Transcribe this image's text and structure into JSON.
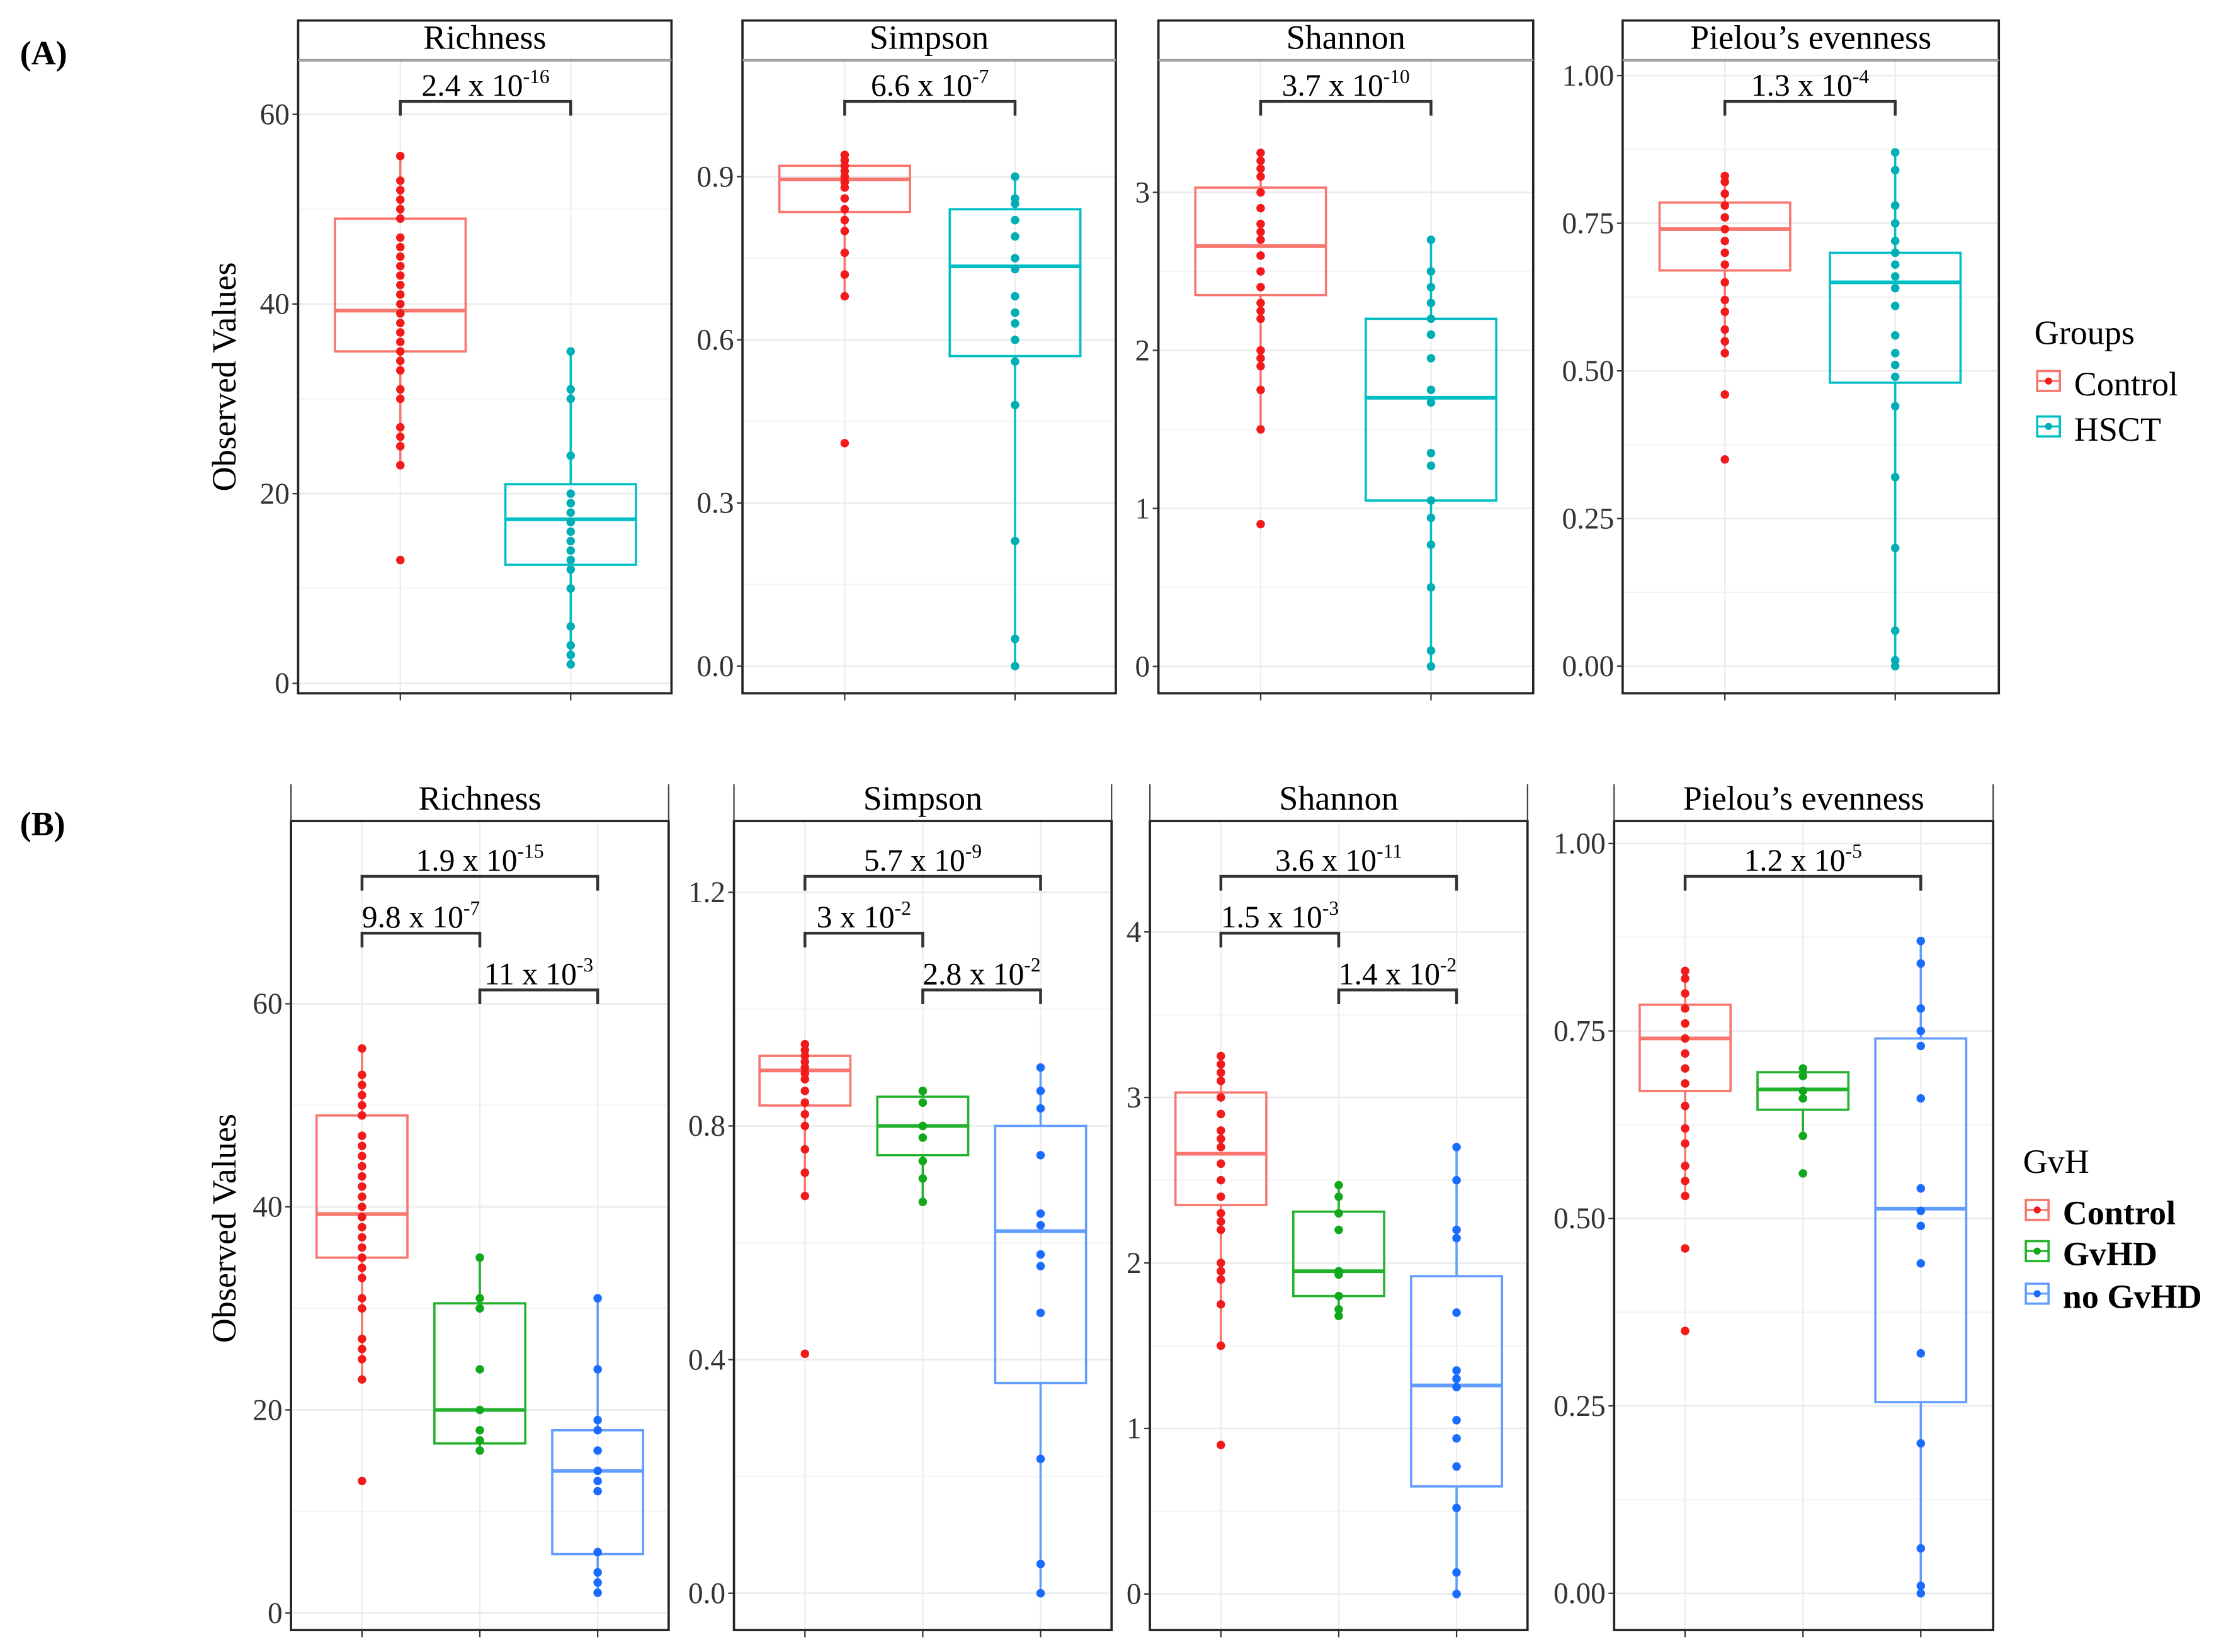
{
  "figure": {
    "panel_a_label": "(A)",
    "panel_b_label": "(B)",
    "ylabel": "Observed Values",
    "legend_a": {
      "title": "Groups",
      "items": [
        {
          "label": "Control",
          "color": "#F8766D",
          "point": "#F21A1A"
        },
        {
          "label": "HSCT",
          "color": "#00BFC4",
          "point": "#00AFB5"
        }
      ]
    },
    "legend_b": {
      "title": "GvH",
      "items": [
        {
          "label": "Control",
          "color": "#F8766D",
          "point": "#F21A1A"
        },
        {
          "label": "GvHD",
          "color": "#22B22C",
          "point": "#11A81B"
        },
        {
          "label": "no GvHD",
          "color": "#619CFF",
          "point": "#1A6BFF"
        }
      ]
    }
  },
  "chart_data": [
    {
      "type": "box",
      "row": "A",
      "title": "Richness",
      "ylabel": "Observed Values",
      "ylim": [
        -1.05,
        65.7
      ],
      "ticks": [
        "0",
        "20",
        "40",
        "60"
      ],
      "tickvals": [
        0,
        20,
        40,
        60
      ],
      "groups": [
        {
          "name": "Control",
          "q1": 35,
          "median": 39.3,
          "q3": 49,
          "whisker": [
            23,
            55.6
          ],
          "points": [
            13,
            23,
            25,
            26,
            27,
            30,
            31,
            33,
            34,
            35,
            36,
            37,
            38,
            39,
            40,
            41,
            42,
            43,
            44,
            45,
            46,
            47,
            49,
            50,
            51,
            52,
            53,
            55.6
          ]
        },
        {
          "name": "HSCT",
          "q1": 12.5,
          "median": 17.3,
          "q3": 21,
          "whisker": [
            2,
            35
          ],
          "points": [
            2,
            3,
            4,
            6,
            10,
            12,
            13,
            14,
            15,
            16,
            17,
            18,
            19,
            20,
            24,
            30,
            31,
            35
          ]
        }
      ],
      "comparisons": [
        {
          "groups": [
            0,
            1
          ],
          "level": 0,
          "mantissa": "2.4 x 10",
          "exponent": "-16"
        }
      ]
    },
    {
      "type": "box",
      "row": "A",
      "title": "Simpson",
      "ylim": [
        -0.05,
        1.114
      ],
      "ticks": [
        "0.0",
        "0.3",
        "0.6",
        "0.9"
      ],
      "tickvals": [
        0,
        0.3,
        0.6,
        0.9
      ],
      "groups": [
        {
          "name": "Control",
          "q1": 0.835,
          "median": 0.895,
          "q3": 0.92,
          "whisker": [
            0.68,
            0.94
          ],
          "points": [
            0.41,
            0.68,
            0.72,
            0.76,
            0.8,
            0.82,
            0.84,
            0.86,
            0.88,
            0.89,
            0.9,
            0.91,
            0.92,
            0.93,
            0.94
          ]
        },
        {
          "name": "HSCT",
          "q1": 0.57,
          "median": 0.735,
          "q3": 0.84,
          "whisker": [
            0,
            0.9
          ],
          "points": [
            0,
            0.05,
            0.23,
            0.48,
            0.56,
            0.6,
            0.63,
            0.65,
            0.68,
            0.73,
            0.75,
            0.79,
            0.82,
            0.85,
            0.86,
            0.9
          ]
        }
      ],
      "comparisons": [
        {
          "groups": [
            0,
            1
          ],
          "level": 0,
          "mantissa": "6.6 x 10",
          "exponent": "-7"
        }
      ]
    },
    {
      "type": "box",
      "row": "A",
      "title": "Shannon",
      "ylim": [
        -0.17,
        3.836
      ],
      "ticks": [
        "0",
        "1",
        "2",
        "3"
      ],
      "tickvals": [
        0,
        1,
        2,
        3
      ],
      "groups": [
        {
          "name": "Control",
          "q1": 2.35,
          "median": 2.66,
          "q3": 3.03,
          "whisker": [
            1.5,
            3.25
          ],
          "points": [
            0.9,
            1.5,
            1.75,
            1.9,
            1.95,
            2.0,
            2.2,
            2.25,
            2.3,
            2.4,
            2.5,
            2.6,
            2.7,
            2.75,
            2.8,
            2.9,
            3.0,
            3.1,
            3.15,
            3.2,
            3.25
          ]
        },
        {
          "name": "HSCT",
          "q1": 1.05,
          "median": 1.7,
          "q3": 2.2,
          "whisker": [
            0,
            2.7
          ],
          "points": [
            0,
            0.1,
            0.5,
            0.77,
            0.94,
            1.05,
            1.27,
            1.35,
            1.67,
            1.75,
            1.95,
            2.1,
            2.2,
            2.3,
            2.4,
            2.5,
            2.7
          ]
        }
      ],
      "comparisons": [
        {
          "groups": [
            0,
            1
          ],
          "level": 0,
          "mantissa": "3.7 x 10",
          "exponent": "-10"
        }
      ]
    },
    {
      "type": "box",
      "row": "A",
      "title": "Pielou’s evenness",
      "ylim": [
        -0.046,
        1.026
      ],
      "ticks": [
        "0.00",
        "0.25",
        "0.50",
        "0.75",
        "1.00"
      ],
      "tickvals": [
        0,
        0.25,
        0.5,
        0.75,
        1
      ],
      "groups": [
        {
          "name": "Control",
          "q1": 0.67,
          "median": 0.74,
          "q3": 0.785,
          "whisker": [
            0.53,
            0.83
          ],
          "points": [
            0.35,
            0.46,
            0.53,
            0.55,
            0.57,
            0.6,
            0.62,
            0.65,
            0.68,
            0.7,
            0.72,
            0.74,
            0.76,
            0.78,
            0.8,
            0.82,
            0.83
          ]
        },
        {
          "name": "HSCT",
          "q1": 0.48,
          "median": 0.65,
          "q3": 0.7,
          "whisker": [
            0,
            0.87
          ],
          "points": [
            0,
            0.01,
            0.06,
            0.2,
            0.32,
            0.44,
            0.49,
            0.51,
            0.53,
            0.56,
            0.61,
            0.64,
            0.66,
            0.68,
            0.7,
            0.72,
            0.75,
            0.78,
            0.84,
            0.87
          ]
        }
      ],
      "comparisons": [
        {
          "groups": [
            0,
            1
          ],
          "level": 0,
          "mantissa": "1.3 x 10",
          "exponent": "-4"
        }
      ]
    },
    {
      "type": "box",
      "row": "B",
      "title": "Richness",
      "ylabel": "Observed Values",
      "ylim": [
        -1.68,
        78
      ],
      "ticks": [
        "0",
        "20",
        "40",
        "60"
      ],
      "tickvals": [
        0,
        20,
        40,
        60
      ],
      "groups": [
        {
          "name": "Control",
          "q1": 35,
          "median": 39.3,
          "q3": 49,
          "whisker": [
            23,
            55.6
          ],
          "points": [
            13,
            23,
            25,
            26,
            27,
            30,
            31,
            33,
            34,
            35,
            36,
            37,
            38,
            39,
            40,
            41,
            42,
            43,
            44,
            45,
            46,
            47,
            49,
            50,
            51,
            52,
            53,
            55.6
          ]
        },
        {
          "name": "GvHD",
          "q1": 16.7,
          "median": 20,
          "q3": 30.5,
          "whisker": [
            16,
            35
          ],
          "points": [
            16,
            17,
            18,
            20,
            24,
            30,
            31,
            35
          ]
        },
        {
          "name": "no GvHD",
          "q1": 5.8,
          "median": 14,
          "q3": 18,
          "whisker": [
            2,
            31
          ],
          "points": [
            2,
            3,
            4,
            6,
            12,
            13,
            14,
            16,
            18,
            19,
            24,
            31
          ]
        }
      ],
      "comparisons": [
        {
          "groups": [
            0,
            2
          ],
          "level": 0,
          "mantissa": "1.9 x 10",
          "exponent": "-15"
        },
        {
          "groups": [
            0,
            1
          ],
          "level": 1,
          "mantissa": "9.8 x 10",
          "exponent": "-7"
        },
        {
          "groups": [
            1,
            2
          ],
          "level": 2,
          "mantissa": "11 x 10",
          "exponent": "-3"
        }
      ]
    },
    {
      "type": "box",
      "row": "B",
      "title": "Simpson",
      "ylim": [
        -0.063,
        1.322
      ],
      "ticks": [
        "0.0",
        "0.4",
        "0.8",
        "1.2"
      ],
      "tickvals": [
        0,
        0.4,
        0.8,
        1.2
      ],
      "groups": [
        {
          "name": "Control",
          "q1": 0.835,
          "median": 0.895,
          "q3": 0.92,
          "whisker": [
            0.68,
            0.94
          ],
          "points": [
            0.41,
            0.68,
            0.72,
            0.76,
            0.8,
            0.82,
            0.84,
            0.86,
            0.88,
            0.89,
            0.9,
            0.91,
            0.92,
            0.93,
            0.94
          ]
        },
        {
          "name": "GvHD",
          "q1": 0.75,
          "median": 0.8,
          "q3": 0.85,
          "whisker": [
            0.67,
            0.86
          ],
          "points": [
            0.67,
            0.71,
            0.74,
            0.78,
            0.8,
            0.84,
            0.86,
            0.86
          ]
        },
        {
          "name": "no GvHD",
          "q1": 0.36,
          "median": 0.62,
          "q3": 0.8,
          "whisker": [
            0,
            0.9
          ],
          "points": [
            0,
            0.05,
            0.23,
            0.48,
            0.56,
            0.58,
            0.63,
            0.65,
            0.75,
            0.83,
            0.86,
            0.9
          ]
        }
      ],
      "comparisons": [
        {
          "groups": [
            0,
            2
          ],
          "level": 0,
          "mantissa": "5.7 x 10",
          "exponent": "-9"
        },
        {
          "groups": [
            0,
            1
          ],
          "level": 1,
          "mantissa": "3 x 10",
          "exponent": "-2"
        },
        {
          "groups": [
            1,
            2
          ],
          "level": 2,
          "mantissa": "2.8 x 10",
          "exponent": "-2"
        }
      ]
    },
    {
      "type": "box",
      "row": "B",
      "title": "Shannon",
      "ylim": [
        -0.218,
        4.67
      ],
      "ticks": [
        "0",
        "1",
        "2",
        "3",
        "4"
      ],
      "tickvals": [
        0,
        1,
        2,
        3,
        4
      ],
      "groups": [
        {
          "name": "Control",
          "q1": 2.35,
          "median": 2.66,
          "q3": 3.03,
          "whisker": [
            1.5,
            3.25
          ],
          "points": [
            0.9,
            1.5,
            1.75,
            1.9,
            1.95,
            2.0,
            2.2,
            2.25,
            2.3,
            2.4,
            2.5,
            2.6,
            2.7,
            2.75,
            2.8,
            2.9,
            3.0,
            3.1,
            3.15,
            3.2,
            3.25
          ]
        },
        {
          "name": "GvHD",
          "q1": 1.8,
          "median": 1.95,
          "q3": 2.31,
          "whisker": [
            1.68,
            2.47
          ],
          "points": [
            1.68,
            1.72,
            1.8,
            1.93,
            1.95,
            2.2,
            2.3,
            2.4,
            2.47
          ]
        },
        {
          "name": "no GvHD",
          "q1": 0.65,
          "median": 1.26,
          "q3": 1.92,
          "whisker": [
            0,
            2.7
          ],
          "points": [
            0,
            0.13,
            0.52,
            0.77,
            0.94,
            1.05,
            1.25,
            1.3,
            1.35,
            1.7,
            2.15,
            2.2,
            2.5,
            2.7
          ]
        }
      ],
      "comparisons": [
        {
          "groups": [
            0,
            2
          ],
          "level": 0,
          "mantissa": "3.6 x 10",
          "exponent": "-11"
        },
        {
          "groups": [
            0,
            1
          ],
          "level": 1,
          "mantissa": "1.5 x 10",
          "exponent": "-3"
        },
        {
          "groups": [
            1,
            2
          ],
          "level": 2,
          "mantissa": "1.4 x 10",
          "exponent": "-2"
        }
      ]
    },
    {
      "type": "box",
      "row": "B",
      "title": "Pielou’s evenness",
      "ylim": [
        -0.049,
        1.03
      ],
      "ticks": [
        "0.00",
        "0.25",
        "0.50",
        "0.75",
        "1.00"
      ],
      "tickvals": [
        0,
        0.25,
        0.5,
        0.75,
        1
      ],
      "groups": [
        {
          "name": "Control",
          "q1": 0.67,
          "median": 0.74,
          "q3": 0.785,
          "whisker": [
            0.53,
            0.83
          ],
          "points": [
            0.35,
            0.46,
            0.53,
            0.55,
            0.57,
            0.6,
            0.62,
            0.65,
            0.68,
            0.7,
            0.72,
            0.74,
            0.76,
            0.78,
            0.8,
            0.82,
            0.83
          ]
        },
        {
          "name": "GvHD",
          "q1": 0.645,
          "median": 0.672,
          "q3": 0.695,
          "whisker": [
            0.61,
            0.7
          ],
          "points": [
            0.56,
            0.61,
            0.66,
            0.67,
            0.69,
            0.7
          ]
        },
        {
          "name": "no GvHD",
          "q1": 0.255,
          "median": 0.513,
          "q3": 0.74,
          "whisker": [
            0,
            0.87
          ],
          "points": [
            0,
            0.01,
            0.06,
            0.2,
            0.32,
            0.44,
            0.49,
            0.51,
            0.54,
            0.66,
            0.73,
            0.75,
            0.78,
            0.84,
            0.87
          ]
        }
      ],
      "comparisons": [
        {
          "groups": [
            0,
            2
          ],
          "level": 0,
          "mantissa": "1.2 x 10",
          "exponent": "-5"
        }
      ]
    }
  ]
}
